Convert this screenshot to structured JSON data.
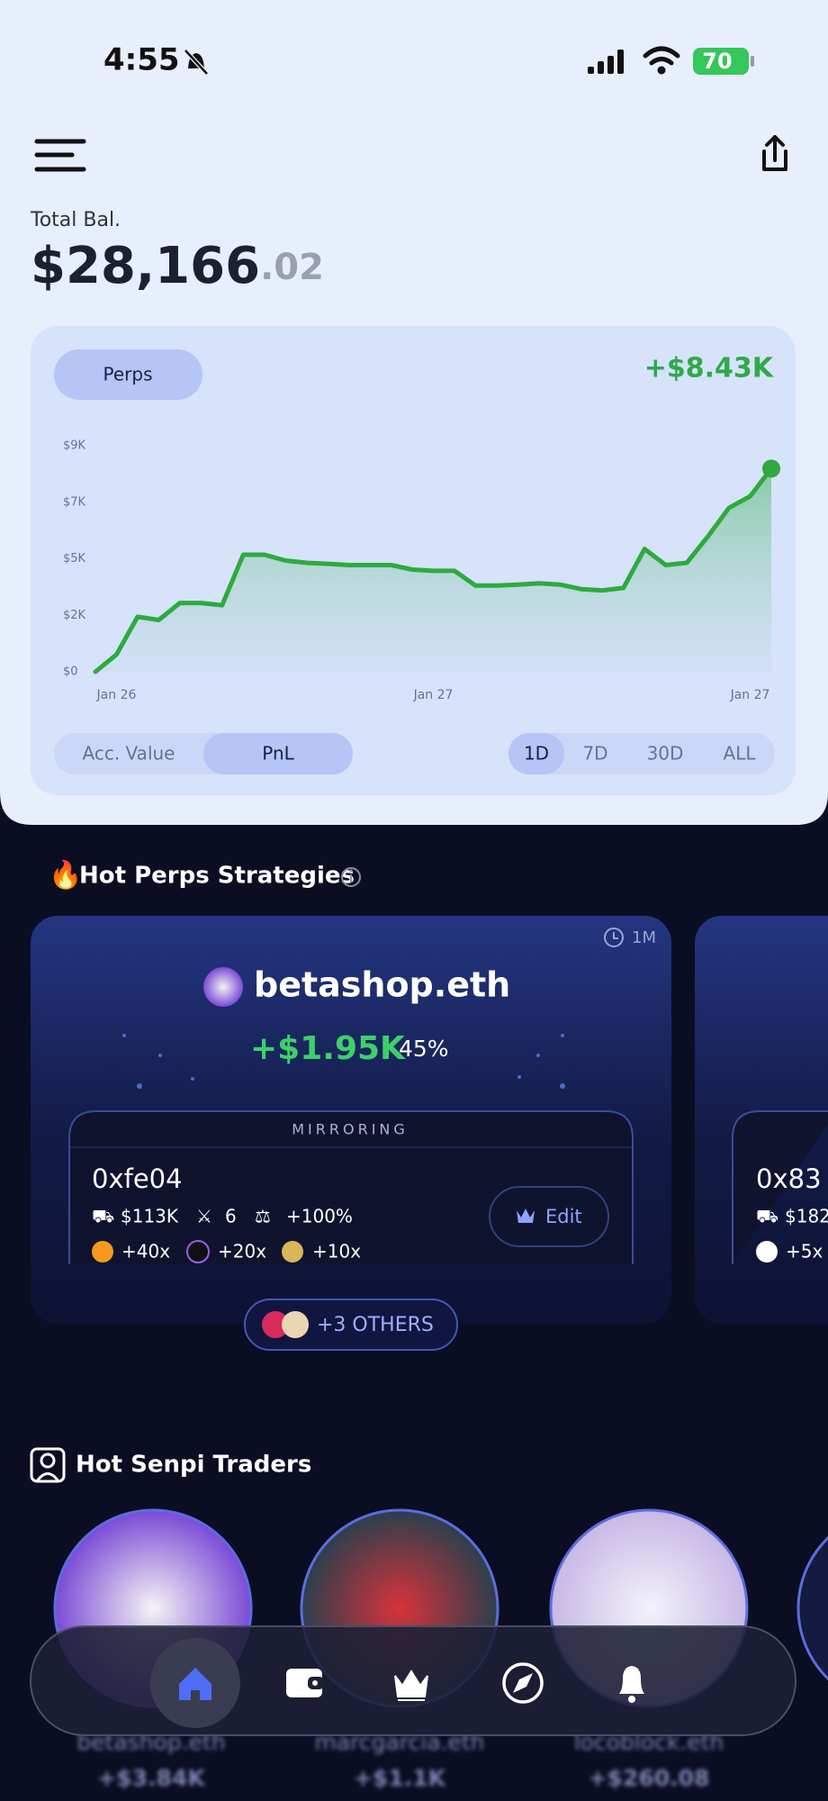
{
  "status_bar": {
    "time": "4:55",
    "battery": "70"
  },
  "balance": {
    "label": "Total Bal.",
    "whole": "$28,166",
    "cents": ".02"
  },
  "balance_chart": {
    "type": "line",
    "filter": "Perps",
    "change": "+$8.43K",
    "color": "#2eaa3e",
    "categories": [
      null,
      "Jan 26",
      null,
      null,
      null,
      null,
      null,
      null,
      null,
      null,
      null,
      null,
      null,
      null,
      null,
      null,
      "Jan 27",
      null,
      null,
      null,
      null,
      null,
      null,
      null,
      null,
      null,
      null,
      null,
      null,
      null,
      null,
      "Jan 27",
      null
    ],
    "values": [
      0,
      690,
      2190,
      2060,
      2740,
      2740,
      2650,
      4660,
      4660,
      4430,
      4340,
      4300,
      4250,
      4250,
      4250,
      4070,
      4020,
      4020,
      3430,
      3430,
      3470,
      3520,
      3470,
      3290,
      3240,
      3340,
      4890,
      4250,
      4340,
      5390,
      6530,
      6990,
      8090
    ],
    "ylim": [
      0,
      9000
    ],
    "yticks": [
      {
        "value": 0,
        "label": "$0"
      },
      {
        "value": 2250,
        "label": "$2K"
      },
      {
        "value": 4500,
        "label": "$5K"
      },
      {
        "value": 6750,
        "label": "$7K"
      },
      {
        "value": 9000,
        "label": "$9K"
      }
    ],
    "views": [
      "Acc. Value",
      "PnL"
    ],
    "active_view": 1,
    "periods": [
      "1D",
      "7D",
      "30D",
      "ALL"
    ],
    "active_period": 0
  },
  "strategies": {
    "title": "Hot Perps Strategies",
    "cards": [
      {
        "timeframe": "1M",
        "name": "betashop.eth",
        "pnl": "+$1.95K",
        "pnl_pct": "45%",
        "status": "MIRRORING",
        "wallet": "0xfe04",
        "stats": [
          "$113K",
          "6",
          "+100%"
        ],
        "leverage": [
          "+40x",
          "+20x",
          "+10x"
        ],
        "action": "Edit",
        "others": "+3 OTHERS"
      },
      {
        "wallet": "0x83",
        "stats": [
          "$182"
        ],
        "leverage": [
          "+5x"
        ]
      }
    ]
  },
  "traders": {
    "title": "Hot Senpi Traders",
    "list": [
      {
        "name": "betashop.eth",
        "pnl": "+$3.84K"
      },
      {
        "name": "marcgarcia.eth",
        "pnl": "+$1.1K"
      },
      {
        "name": "locoblock.eth",
        "pnl": "+$260.08"
      }
    ]
  }
}
